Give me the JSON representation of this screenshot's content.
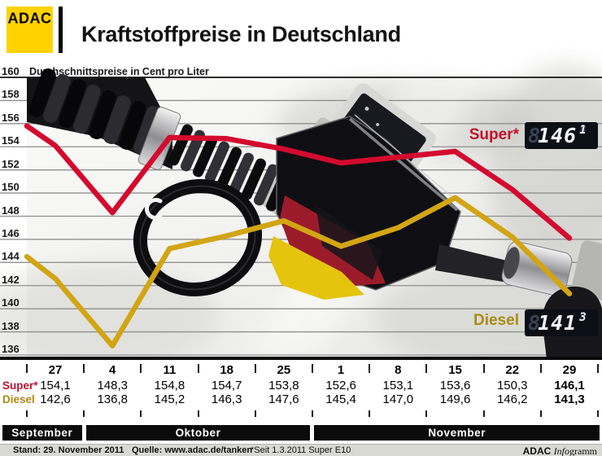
{
  "header": {
    "logo_text": "ADAC",
    "title": "Kraftstoffpreise in Deutschland"
  },
  "chart": {
    "subtitle": "Durchschnittspreise in Cent pro Liter",
    "y_ticks": [
      160,
      158,
      156,
      154,
      152,
      150,
      148,
      146,
      144,
      142,
      140,
      138,
      136
    ],
    "super_label": "Super*",
    "diesel_label": "Diesel",
    "super_display": {
      "ghost": "8",
      "main": "146",
      "decimal": "1"
    },
    "diesel_display": {
      "ghost": "8",
      "main": "141",
      "decimal": "3"
    }
  },
  "chart_data": {
    "type": "line",
    "title": "Kraftstoffpreise in Deutschland",
    "ylabel": "Durchschnittspreise in Cent pro Liter",
    "ylim": [
      136,
      160
    ],
    "grid": true,
    "x_labels": [
      "27",
      "4",
      "11",
      "18",
      "25",
      "1",
      "8",
      "15",
      "22",
      "29"
    ],
    "months": [
      {
        "label": "September",
        "start_col": 0,
        "end_col": 0
      },
      {
        "label": "Oktober",
        "start_col": 1,
        "end_col": 4
      },
      {
        "label": "November",
        "start_col": 5,
        "end_col": 9
      }
    ],
    "series": [
      {
        "name": "Super*",
        "color": "#d40a2e",
        "edge_value": 155.8,
        "values": [
          154.1,
          148.3,
          154.8,
          154.7,
          153.8,
          152.6,
          153.1,
          153.6,
          150.3,
          146.1
        ]
      },
      {
        "name": "Diesel",
        "color": "#d2a514",
        "edge_value": 144.5,
        "values": [
          142.6,
          136.8,
          145.2,
          146.3,
          147.6,
          145.4,
          147.0,
          149.6,
          146.2,
          141.3
        ]
      }
    ]
  },
  "table": {
    "dates": [
      "27",
      "4",
      "11",
      "18",
      "25",
      "1",
      "8",
      "15",
      "22",
      "29"
    ],
    "row_labels": [
      {
        "text": "Super*",
        "color": "#c1122c"
      },
      {
        "text": "Diesel",
        "color": "#ab8a15"
      }
    ],
    "super_values": [
      "154,1",
      "148,3",
      "154,8",
      "154,7",
      "153,8",
      "152,6",
      "153,1",
      "153,6",
      "150,3",
      "146,1"
    ],
    "diesel_values": [
      "142,6",
      "136,8",
      "145,2",
      "146,3",
      "147,6",
      "145,4",
      "147,0",
      "149,6",
      "146,2",
      "141,3"
    ],
    "bold_col": 9
  },
  "footer": {
    "stand": "Stand: 29. November 2011",
    "quelle": "Quelle: www.adac.de/tanken",
    "note": "*Seit 1.3.2011 Super E10",
    "brand_bold": "ADAC",
    "brand_italic": "Info",
    "brand_rest": "gramm"
  }
}
